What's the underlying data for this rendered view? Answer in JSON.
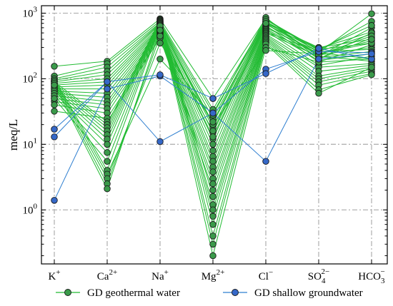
{
  "chart_data": {
    "type": "line",
    "ylabel": "meq/L",
    "yscale": "log",
    "ylim": [
      0.15,
      1300
    ],
    "y_ticks": [
      {
        "value": 1,
        "base": "10",
        "exp": "0"
      },
      {
        "value": 10,
        "base": "10",
        "exp": "1"
      },
      {
        "value": 100,
        "base": "10",
        "exp": "2"
      },
      {
        "value": 1000,
        "base": "10",
        "exp": "3"
      }
    ],
    "categories": [
      {
        "base": "K",
        "sup": "+",
        "sub": ""
      },
      {
        "base": "Ca",
        "sup": "2+",
        "sub": ""
      },
      {
        "base": "Na",
        "sup": "+",
        "sub": ""
      },
      {
        "base": "Mg",
        "sup": "2+",
        "sub": ""
      },
      {
        "base": "Cl",
        "sup": "−",
        "sub": ""
      },
      {
        "base": "SO",
        "sup": "2−",
        "sub": "4"
      },
      {
        "base": "HCO",
        "sup": "−",
        "sub": "3"
      }
    ],
    "grid": true,
    "legend_position": "bottom",
    "colors": {
      "geothermal_line": "#22bb33",
      "geothermal_marker": "#3a9a4a",
      "shallow_line": "#2f7fd0",
      "shallow_marker": "#3568c8",
      "grid": "#b3b3b3"
    },
    "series_groups": [
      {
        "name": "GD geothermal water",
        "color_key": "geothermal",
        "samples": [
          [
            155,
            185,
            820,
            50,
            830,
            250,
            980
          ],
          [
            110,
            170,
            760,
            34,
            790,
            270,
            750
          ],
          [
            100,
            150,
            720,
            30,
            760,
            220,
            600
          ],
          [
            95,
            130,
            700,
            25,
            740,
            290,
            520
          ],
          [
            90,
            115,
            680,
            21,
            720,
            260,
            480
          ],
          [
            85,
            100,
            650,
            18,
            700,
            200,
            420
          ],
          [
            80,
            90,
            620,
            15,
            690,
            240,
            380
          ],
          [
            75,
            80,
            600,
            12,
            670,
            280,
            350
          ],
          [
            70,
            70,
            580,
            10,
            650,
            180,
            330
          ],
          [
            65,
            60,
            560,
            8,
            630,
            230,
            300
          ],
          [
            60,
            52,
            540,
            6.5,
            600,
            260,
            280
          ],
          [
            55,
            45,
            520,
            5.5,
            580,
            210,
            260
          ],
          [
            50,
            40,
            500,
            4.5,
            560,
            190,
            240
          ],
          [
            45,
            35,
            480,
            3.8,
            540,
            160,
            220
          ],
          [
            40,
            30,
            460,
            3,
            520,
            250,
            200
          ],
          [
            32,
            25,
            440,
            2.5,
            500,
            220,
            185
          ],
          [
            90,
            22,
            420,
            2,
            480,
            150,
            170
          ],
          [
            85,
            20,
            800,
            1.6,
            460,
            130,
            160
          ],
          [
            80,
            18,
            780,
            1.2,
            440,
            110,
            150
          ],
          [
            75,
            16,
            760,
            1,
            420,
            100,
            140
          ],
          [
            70,
            14,
            740,
            0.8,
            400,
            90,
            130
          ],
          [
            65,
            12,
            720,
            0.6,
            380,
            80,
            120
          ],
          [
            60,
            10,
            700,
            0.4,
            360,
            68,
            115
          ],
          [
            55,
            7.5,
            680,
            0.3,
            340,
            60,
            150
          ],
          [
            50,
            5.5,
            660,
            0.2,
            300,
            180,
            200
          ],
          [
            100,
            4,
            640,
            20,
            270,
            240,
            350
          ],
          [
            95,
            3.5,
            200,
            28,
            860,
            200,
            500
          ],
          [
            90,
            3,
            350,
            22,
            800,
            280,
            650
          ],
          [
            85,
            2.5,
            450,
            16,
            750,
            230,
            450
          ],
          [
            80,
            2.1,
            550,
            13,
            700,
            300,
            400
          ]
        ]
      },
      {
        "name": "GD shallow groundwater",
        "color_key": "shallow",
        "samples": [
          [
            1.4,
            70,
            110,
            30,
            140,
            260,
            250
          ],
          [
            17,
            90,
            115,
            50,
            120,
            290,
            200
          ],
          [
            13,
            90,
            11,
            30,
            5.5,
            200,
            240
          ]
        ]
      }
    ]
  }
}
